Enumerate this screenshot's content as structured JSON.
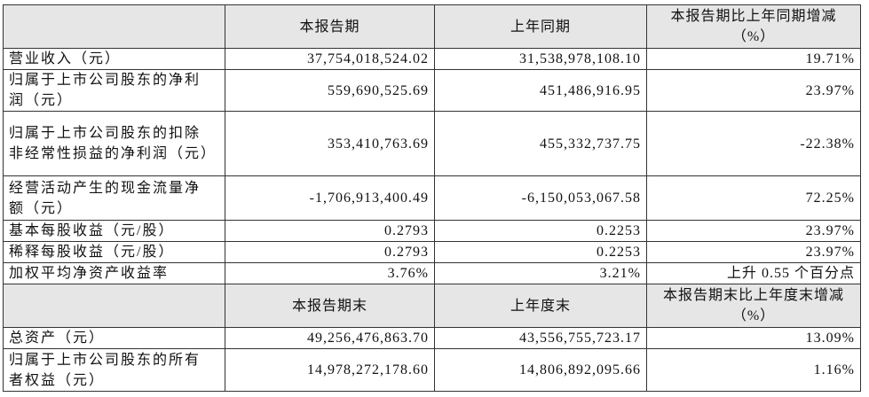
{
  "sections": [
    {
      "header": [
        "本报告期",
        "上年同期",
        "本报告期比上年同期增减（%）"
      ],
      "rows": [
        [
          "营业收入（元）",
          "37,754,018,524.02",
          "31,538,978,108.10",
          "19.71%"
        ],
        [
          "归属于上市公司股东的净利润（元）",
          "559,690,525.69",
          "451,486,916.95",
          "23.97%"
        ],
        [
          "归属于上市公司股东的扣除非经常性损益的净利润（元）",
          "353,410,763.69",
          "455,332,737.75",
          "-22.38%"
        ],
        [
          "经营活动产生的现金流量净额（元）",
          "-1,706,913,400.49",
          "-6,150,053,067.58",
          "72.25%"
        ],
        [
          "基本每股收益（元/股）",
          "0.2793",
          "0.2253",
          "23.97%"
        ],
        [
          "稀释每股收益（元/股）",
          "0.2793",
          "0.2253",
          "23.97%"
        ],
        [
          "加权平均净资产收益率",
          "3.76%",
          "3.21%",
          "上升 0.55 个百分点"
        ]
      ]
    },
    {
      "header": [
        "本报告期末",
        "上年度末",
        "本报告期末比上年度末增减（%）"
      ],
      "rows": [
        [
          "总资产（元）",
          "49,256,476,863.70",
          "43,556,755,723.17",
          "13.09%"
        ],
        [
          "归属于上市公司股东的所有者权益（元）",
          "14,978,272,178.60",
          "14,806,892,095.66",
          "1.16%"
        ]
      ]
    }
  ]
}
